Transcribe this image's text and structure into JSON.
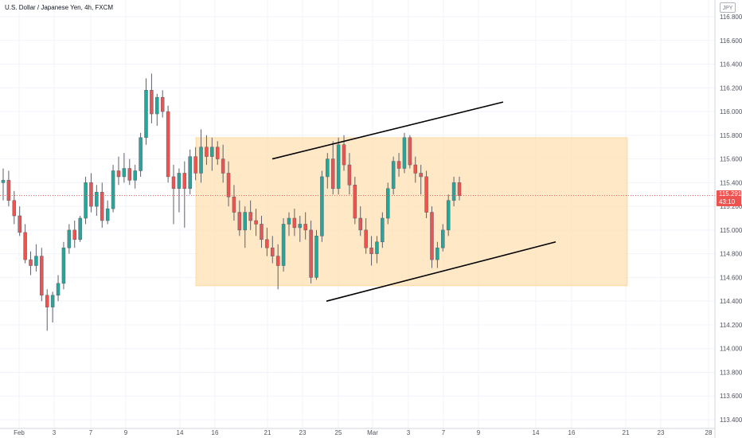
{
  "header": {
    "symbol_title": "U.S. Dollar / Japanese Yen, 4h, FXCM",
    "currency": "JPY"
  },
  "last_price": {
    "price": "115.291",
    "countdown": "43:10"
  },
  "colors": {
    "up": "#26a69a",
    "down": "#ef5350",
    "zone_fill": "#ffe0b2",
    "zone_border": "#ffb74d",
    "grid": "#f0f3fa",
    "trendline": "#000000"
  },
  "chart_data": {
    "type": "candlestick",
    "symbol": "USDJPY",
    "timeframe": "4h",
    "y_axis": {
      "range": [
        113.4,
        116.8
      ],
      "ticks": [
        116.8,
        116.6,
        116.4,
        116.2,
        116.0,
        115.8,
        115.6,
        115.4,
        115.2,
        115.0,
        114.8,
        114.6,
        114.4,
        114.2,
        114.0,
        113.8,
        113.6,
        113.4
      ],
      "tick_labels": [
        "116.800",
        "116.600",
        "116.400",
        "116.200",
        "116.000",
        "115.800",
        "115.600",
        "115.400",
        "115.200",
        "115.000",
        "114.800",
        "114.600",
        "114.400",
        "114.200",
        "114.000",
        "113.800",
        "113.600",
        "113.400"
      ]
    },
    "x_axis": {
      "tick_labels": [
        "Feb",
        "3",
        "7",
        "9",
        "14",
        "16",
        "21",
        "23",
        "25",
        "Mar",
        "3",
        "7",
        "9",
        "14",
        "16",
        "21",
        "23",
        "28"
      ]
    },
    "grid": true,
    "candles_ohlc": [
      [
        115.4,
        115.52,
        115.25,
        115.42
      ],
      [
        115.42,
        115.5,
        115.2,
        115.25
      ],
      [
        115.25,
        115.33,
        115.05,
        115.12
      ],
      [
        115.12,
        115.2,
        114.95,
        114.98
      ],
      [
        114.98,
        115.05,
        114.72,
        114.75
      ],
      [
        114.75,
        114.82,
        114.62,
        114.7
      ],
      [
        114.7,
        114.88,
        114.65,
        114.78
      ],
      [
        114.78,
        114.85,
        114.4,
        114.45
      ],
      [
        114.45,
        114.5,
        114.15,
        114.35
      ],
      [
        114.35,
        114.48,
        114.22,
        114.45
      ],
      [
        114.45,
        114.62,
        114.4,
        114.55
      ],
      [
        114.55,
        114.9,
        114.5,
        114.85
      ],
      [
        114.85,
        115.05,
        114.8,
        115.0
      ],
      [
        115.0,
        115.08,
        114.85,
        114.92
      ],
      [
        114.92,
        115.12,
        114.9,
        115.1
      ],
      [
        115.1,
        115.45,
        115.05,
        115.4
      ],
      [
        115.4,
        115.48,
        115.15,
        115.2
      ],
      [
        115.2,
        115.38,
        115.12,
        115.32
      ],
      [
        115.32,
        115.4,
        115.02,
        115.08
      ],
      [
        115.08,
        115.25,
        115.05,
        115.18
      ],
      [
        115.18,
        115.55,
        115.15,
        115.5
      ],
      [
        115.5,
        115.62,
        115.38,
        115.45
      ],
      [
        115.45,
        115.65,
        115.4,
        115.52
      ],
      [
        115.52,
        115.6,
        115.38,
        115.42
      ],
      [
        115.42,
        115.55,
        115.35,
        115.5
      ],
      [
        115.5,
        115.82,
        115.45,
        115.78
      ],
      [
        115.78,
        116.28,
        115.72,
        116.18
      ],
      [
        116.18,
        116.32,
        115.9,
        115.98
      ],
      [
        115.98,
        116.15,
        115.88,
        116.12
      ],
      [
        116.12,
        116.18,
        115.95,
        116.0
      ],
      [
        116.0,
        116.05,
        115.4,
        115.45
      ],
      [
        115.45,
        115.55,
        115.05,
        115.35
      ],
      [
        115.35,
        115.52,
        115.15,
        115.48
      ],
      [
        115.48,
        115.58,
        115.02,
        115.35
      ],
      [
        115.35,
        115.68,
        115.3,
        115.62
      ],
      [
        115.62,
        115.7,
        115.42,
        115.48
      ],
      [
        115.48,
        115.85,
        115.4,
        115.7
      ],
      [
        115.7,
        115.8,
        115.55,
        115.62
      ],
      [
        115.62,
        115.78,
        115.5,
        115.7
      ],
      [
        115.7,
        115.75,
        115.55,
        115.6
      ],
      [
        115.6,
        115.72,
        115.4,
        115.48
      ],
      [
        115.48,
        115.58,
        115.2,
        115.28
      ],
      [
        115.28,
        115.38,
        115.08,
        115.15
      ],
      [
        115.15,
        115.25,
        114.95,
        115.0
      ],
      [
        115.0,
        115.2,
        114.85,
        115.15
      ],
      [
        115.15,
        115.25,
        115.0,
        115.08
      ],
      [
        115.08,
        115.18,
        114.95,
        115.05
      ],
      [
        115.05,
        115.12,
        114.85,
        114.92
      ],
      [
        114.92,
        115.02,
        114.78,
        114.85
      ],
      [
        114.85,
        114.95,
        114.72,
        114.78
      ],
      [
        114.78,
        114.88,
        114.5,
        114.7
      ],
      [
        114.7,
        115.1,
        114.65,
        115.05
      ],
      [
        115.05,
        115.15,
        114.95,
        115.1
      ],
      [
        115.1,
        115.18,
        114.95,
        115.02
      ],
      [
        115.02,
        115.12,
        114.9,
        115.05
      ],
      [
        115.05,
        115.15,
        114.92,
        115.0
      ],
      [
        115.0,
        115.08,
        114.55,
        114.6
      ],
      [
        114.6,
        115.0,
        114.58,
        114.95
      ],
      [
        114.95,
        115.5,
        114.9,
        115.45
      ],
      [
        115.45,
        115.65,
        115.35,
        115.6
      ],
      [
        115.6,
        115.75,
        115.3,
        115.35
      ],
      [
        115.35,
        115.78,
        115.3,
        115.72
      ],
      [
        115.72,
        115.8,
        115.5,
        115.55
      ],
      [
        115.55,
        115.65,
        115.3,
        115.38
      ],
      [
        115.38,
        115.45,
        115.05,
        115.1
      ],
      [
        115.1,
        115.2,
        114.95,
        115.0
      ],
      [
        115.0,
        115.1,
        114.8,
        114.85
      ],
      [
        114.85,
        114.95,
        114.7,
        114.8
      ],
      [
        114.8,
        114.95,
        114.72,
        114.9
      ],
      [
        114.9,
        115.15,
        114.85,
        115.1
      ],
      [
        115.1,
        115.4,
        115.05,
        115.35
      ],
      [
        115.35,
        115.62,
        115.3,
        115.58
      ],
      [
        115.58,
        115.65,
        115.45,
        115.52
      ],
      [
        115.52,
        115.82,
        115.48,
        115.78
      ],
      [
        115.78,
        115.8,
        115.52,
        115.55
      ],
      [
        115.55,
        115.62,
        115.4,
        115.48
      ],
      [
        115.48,
        115.55,
        115.3,
        115.45
      ],
      [
        115.45,
        115.5,
        115.1,
        115.15
      ],
      [
        115.15,
        115.2,
        114.68,
        114.75
      ],
      [
        114.75,
        114.9,
        114.68,
        114.85
      ],
      [
        114.85,
        115.05,
        114.82,
        115.0
      ],
      [
        115.0,
        115.3,
        114.95,
        115.25
      ],
      [
        115.25,
        115.45,
        115.2,
        115.4
      ],
      [
        115.4,
        115.45,
        115.25,
        115.29
      ]
    ],
    "annotations": {
      "rectangle_zone": {
        "y_range": [
          114.53,
          115.78
        ]
      },
      "upper_trendline": {
        "from_price": 115.6,
        "to_price": 116.08
      },
      "lower_trendline": {
        "from_price": 114.4,
        "to_price": 114.9
      }
    }
  }
}
